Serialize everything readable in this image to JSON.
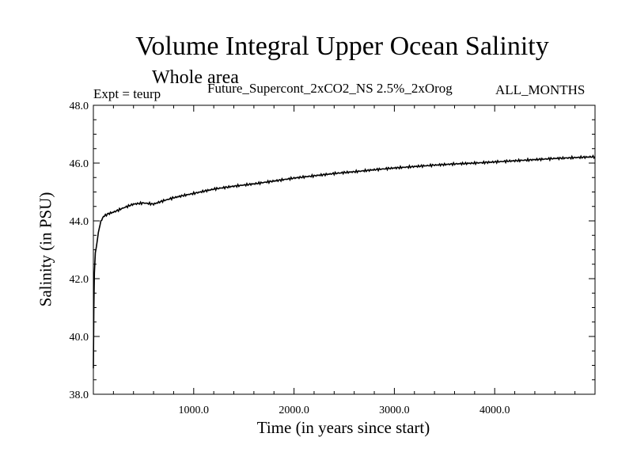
{
  "chart_data": {
    "type": "line",
    "title": "Volume Integral Upper Ocean Salinity",
    "subtitle": "Whole area",
    "annotations": {
      "experiment": "Expt = teurp",
      "run_name": "Future_Supercont_2xCO2_NS 2.5%_2xOrog",
      "months": "ALL_MONTHS"
    },
    "xlabel": "Time (in years since start)",
    "ylabel": "Salinity (in PSU)",
    "xlim": [
      0,
      5000
    ],
    "ylim": [
      38.0,
      48.0
    ],
    "x_ticks": [
      1000,
      2000,
      3000,
      4000
    ],
    "x_tick_labels": [
      "1000.0",
      "2000.0",
      "3000.0",
      "4000.0"
    ],
    "y_ticks": [
      38,
      40,
      42,
      44,
      46,
      48
    ],
    "y_tick_labels": [
      "38.0",
      "40.0",
      "42.0",
      "44.0",
      "46.0",
      "48.0"
    ],
    "grid": false,
    "series": [
      {
        "color": "#000000",
        "x": [
          0,
          5,
          10,
          20,
          30,
          50,
          75,
          100,
          150,
          200,
          300,
          400,
          500,
          600,
          700,
          800,
          900,
          1000,
          1200,
          1400,
          1600,
          1800,
          2000,
          2200,
          2400,
          2600,
          2800,
          3000,
          3200,
          3400,
          3600,
          3800,
          4000,
          4200,
          4400,
          4600,
          4800,
          5000
        ],
        "values": [
          38.9,
          41.0,
          42.2,
          42.9,
          43.1,
          43.6,
          44.0,
          44.15,
          44.25,
          44.3,
          44.45,
          44.58,
          44.62,
          44.58,
          44.7,
          44.8,
          44.88,
          44.95,
          45.1,
          45.2,
          45.28,
          45.38,
          45.48,
          45.56,
          45.64,
          45.7,
          45.77,
          45.83,
          45.88,
          45.93,
          45.97,
          46.0,
          46.04,
          46.08,
          46.12,
          46.16,
          46.19,
          46.22
        ]
      }
    ]
  }
}
